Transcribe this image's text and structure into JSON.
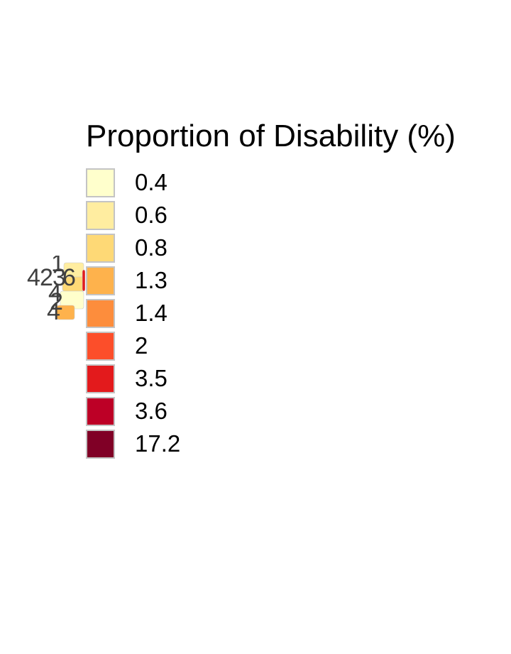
{
  "legend": {
    "title": "Proportion of Disability (%)",
    "items": [
      {
        "label": "0.4",
        "color": "#FFFFCC"
      },
      {
        "label": "0.6",
        "color": "#FFEDA0"
      },
      {
        "label": "0.8",
        "color": "#FED976"
      },
      {
        "label": "1.3",
        "color": "#FEB24C"
      },
      {
        "label": "1.4",
        "color": "#FD8D3C"
      },
      {
        "label": "2",
        "color": "#FC4E2A"
      },
      {
        "label": "3.5",
        "color": "#E31A1C"
      },
      {
        "label": "3.6",
        "color": "#BD0026"
      },
      {
        "label": "17.2",
        "color": "#800026"
      }
    ]
  },
  "map": {
    "overlapping_labels": [
      "1",
      "4",
      "2",
      "3",
      "6",
      "4",
      "2",
      "4"
    ],
    "region_colors": [
      "#FFEDA0",
      "#FED976",
      "#FFFFCC",
      "#E31A1C",
      "#FEB24C"
    ],
    "label_color": "#404040"
  }
}
